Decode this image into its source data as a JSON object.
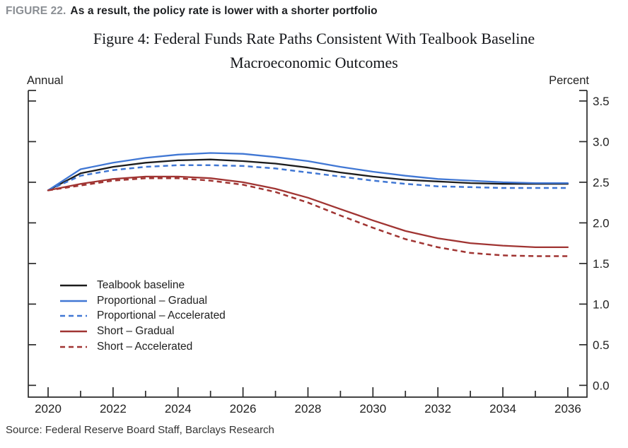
{
  "page": {
    "figure_label": "FIGURE 22.",
    "figure_headline": "As a result, the policy rate is lower with a shorter portfolio",
    "source": "Source: Federal Reserve Board Staff, Barclays Research"
  },
  "colors": {
    "figure_label_gray": "#8b8f94",
    "headline_black": "#1d1f22",
    "axis": "#2b2b2b",
    "baseline_black": "#1c1c1c",
    "proportional_blue": "#4077d4",
    "short_red": "#a03432"
  },
  "chart_data": {
    "type": "line",
    "title_line1": "Figure 4: Federal Funds Rate Paths Consistent With Tealbook Baseline",
    "title_line2": "Macroeconomic Outcomes",
    "left_axis_unit": "Annual",
    "right_axis_unit": "Percent",
    "grid": false,
    "legend_position": "inside-lower-left",
    "xlim": [
      2019.39,
      2036.59
    ],
    "ylim": [
      -0.145,
      3.63
    ],
    "yticks": [
      0.0,
      0.5,
      1.0,
      1.5,
      2.0,
      2.5,
      3.0,
      3.5
    ],
    "xtick_labels": [
      2020,
      2022,
      2024,
      2026,
      2028,
      2030,
      2032,
      2034,
      2036
    ],
    "x": [
      2020,
      2021,
      2022,
      2023,
      2024,
      2025,
      2026,
      2027,
      2028,
      2029,
      2030,
      2031,
      2032,
      2033,
      2034,
      2035,
      2036
    ],
    "series": [
      {
        "name": "Tealbook baseline",
        "color": "#1c1c1c",
        "style": "solid",
        "values": [
          2.4,
          2.61,
          2.69,
          2.74,
          2.77,
          2.78,
          2.76,
          2.73,
          2.68,
          2.62,
          2.57,
          2.53,
          2.51,
          2.49,
          2.48,
          2.48,
          2.48
        ]
      },
      {
        "name": "Proportional – Gradual",
        "color": "#4077d4",
        "style": "solid",
        "values": [
          2.4,
          2.66,
          2.74,
          2.8,
          2.84,
          2.86,
          2.85,
          2.81,
          2.76,
          2.69,
          2.63,
          2.58,
          2.54,
          2.52,
          2.5,
          2.49,
          2.49
        ]
      },
      {
        "name": "Proportional – Accelerated",
        "color": "#4077d4",
        "style": "dashed",
        "values": [
          2.4,
          2.58,
          2.65,
          2.69,
          2.71,
          2.71,
          2.7,
          2.67,
          2.62,
          2.57,
          2.52,
          2.48,
          2.45,
          2.44,
          2.43,
          2.43,
          2.43
        ]
      },
      {
        "name": "Short – Gradual",
        "color": "#a03432",
        "style": "solid",
        "values": [
          2.4,
          2.48,
          2.54,
          2.57,
          2.57,
          2.55,
          2.5,
          2.42,
          2.31,
          2.17,
          2.03,
          1.9,
          1.81,
          1.75,
          1.72,
          1.7,
          1.7
        ]
      },
      {
        "name": "Short – Accelerated",
        "color": "#a03432",
        "style": "dashed",
        "values": [
          2.4,
          2.46,
          2.52,
          2.55,
          2.55,
          2.52,
          2.47,
          2.38,
          2.25,
          2.09,
          1.94,
          1.8,
          1.7,
          1.63,
          1.6,
          1.59,
          1.59
        ]
      }
    ]
  }
}
